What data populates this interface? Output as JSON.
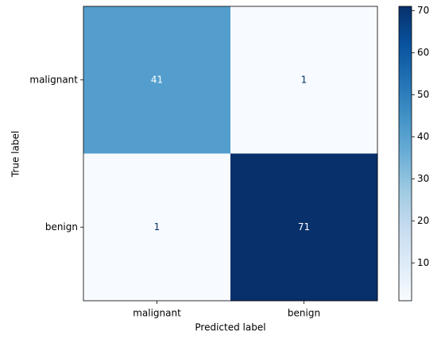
{
  "chart_data": {
    "type": "heatmap",
    "x_label": "Predicted label",
    "y_label": "True label",
    "x_categories": [
      "malignant",
      "benign"
    ],
    "y_categories": [
      "malignant",
      "benign"
    ],
    "values": [
      [
        41,
        1
      ],
      [
        1,
        71
      ]
    ],
    "colormap": [
      "#f7fbff",
      "#deebf7",
      "#c6dbef",
      "#9ecae1",
      "#6baed6",
      "#4292c6",
      "#2171b5",
      "#08519c",
      "#08306b"
    ],
    "text_colors": [
      "#08306b",
      "#ffffff"
    ],
    "clim": [
      1,
      71
    ],
    "cticks": [
      10,
      20,
      30,
      40,
      50,
      60,
      70
    ]
  }
}
